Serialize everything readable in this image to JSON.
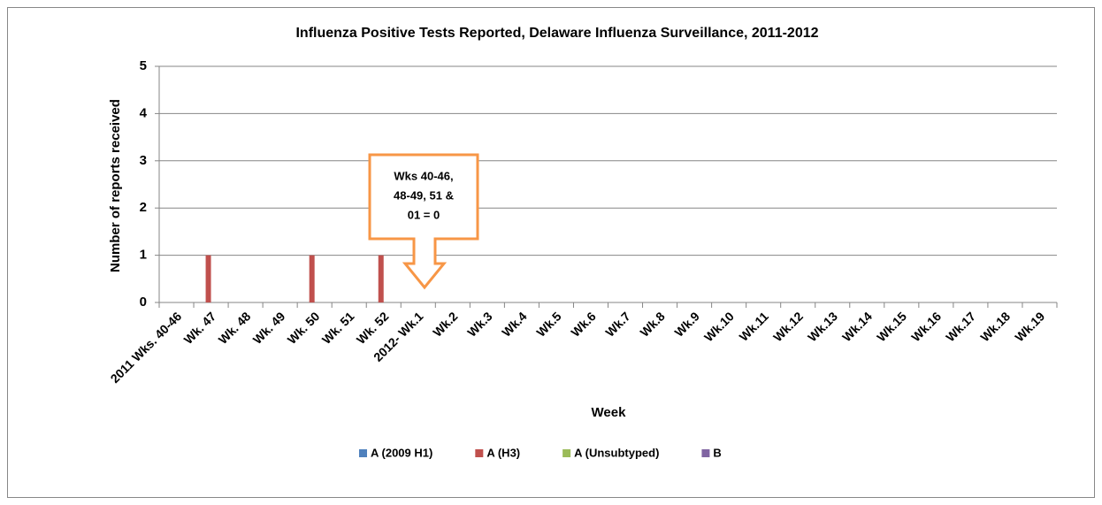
{
  "chart_data": {
    "type": "bar",
    "title": "Influenza Positive Tests Reported, Delaware Influenza Surveillance, 2011-2012",
    "x_label": "Week",
    "y_label": "Number of reports received",
    "categories": [
      "2011 Wks. 40-46",
      "Wk. 47",
      "Wk. 48",
      "Wk. 49",
      "Wk. 50",
      "Wk. 51",
      "Wk. 52",
      "2012- Wk.1",
      "Wk.2",
      "Wk.3",
      "Wk.4",
      "Wk.5",
      "Wk.6",
      "Wk.7",
      "Wk.8",
      "Wk.9",
      "Wk.10",
      "Wk.11",
      "Wk.12",
      "Wk.13",
      "Wk.14",
      "Wk.15",
      "Wk.16",
      "Wk.17",
      "Wk.18",
      "Wk.19"
    ],
    "series": [
      {
        "name": "A (2009 H1)",
        "color": "#4f81bd",
        "values": [
          0,
          0,
          0,
          0,
          0,
          0,
          0,
          0,
          0,
          0,
          0,
          0,
          0,
          0,
          0,
          0,
          0,
          0,
          0,
          0,
          0,
          0,
          0,
          0,
          0,
          0
        ]
      },
      {
        "name": "A (H3)",
        "color": "#c0504d",
        "values": [
          0,
          1,
          0,
          0,
          1,
          0,
          1,
          0,
          0,
          0,
          0,
          0,
          0,
          0,
          0,
          0,
          0,
          0,
          0,
          0,
          0,
          0,
          0,
          0,
          0,
          0
        ]
      },
      {
        "name": "A (Unsubtyped)",
        "color": "#9bbb59",
        "values": [
          0,
          0,
          0,
          0,
          0,
          0,
          0,
          0,
          0,
          0,
          0,
          0,
          0,
          0,
          0,
          0,
          0,
          0,
          0,
          0,
          0,
          0,
          0,
          0,
          0,
          0
        ]
      },
      {
        "name": "B",
        "color": "#8064a2",
        "values": [
          0,
          0,
          0,
          0,
          0,
          0,
          0,
          0,
          0,
          0,
          0,
          0,
          0,
          0,
          0,
          0,
          0,
          0,
          0,
          0,
          0,
          0,
          0,
          0,
          0,
          0
        ]
      }
    ],
    "annotation": [
      "Wks 40-46,",
      "48-49, 51 &",
      "01 = 0"
    ],
    "ylim": [
      0,
      5
    ],
    "yticks": [
      0,
      1,
      2,
      3,
      4,
      5
    ],
    "grid": true,
    "legend": "bottom"
  }
}
